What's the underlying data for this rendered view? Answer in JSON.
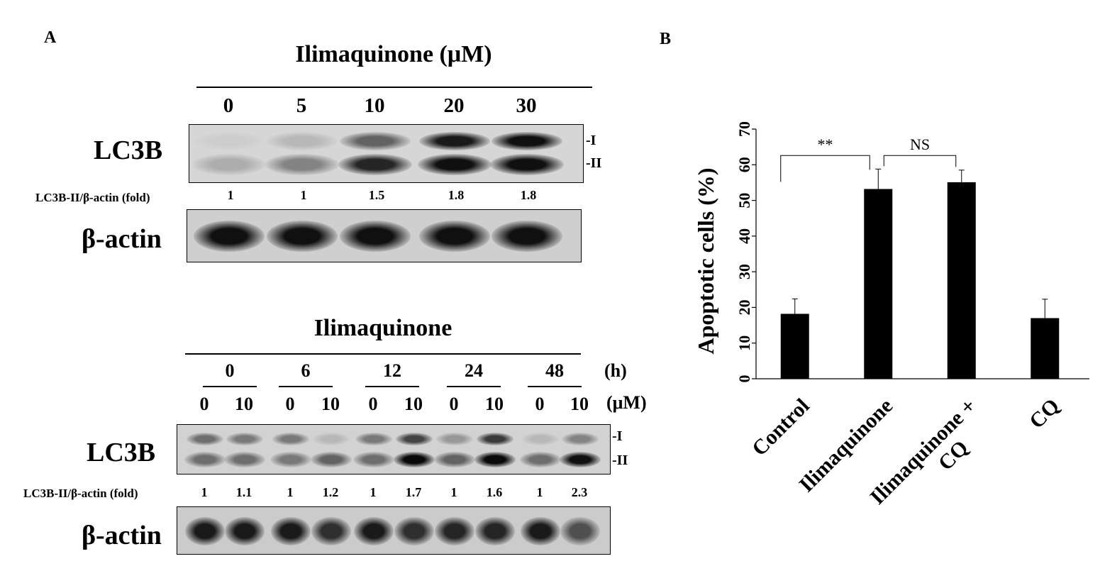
{
  "panel_a": {
    "letter": "A",
    "blot1": {
      "title": "Ilimaquinone (μM)",
      "doses": [
        "0",
        "5",
        "10",
        "20",
        "30"
      ],
      "lc3b_label": "LC3B",
      "form_I": "I",
      "form_II": "II",
      "ratio_label": "LC3B-II/β-actin (fold)",
      "ratios": [
        "1",
        "1",
        "1.5",
        "1.8",
        "1.8"
      ],
      "actin_label": "β-actin",
      "band_I_intensity": [
        0.05,
        0.15,
        0.55,
        0.9,
        0.95
      ],
      "band_II_intensity": [
        0.2,
        0.4,
        0.85,
        0.95,
        0.95
      ],
      "actin_intensity": [
        0.95,
        0.95,
        0.95,
        0.95,
        0.95
      ]
    },
    "blot2": {
      "title": "Ilimaquinone",
      "times": [
        "0",
        "6",
        "12",
        "24",
        "48"
      ],
      "time_unit": "(h)",
      "concentrations": [
        "0",
        "10",
        "0",
        "10",
        "0",
        "10",
        "0",
        "10",
        "0",
        "10"
      ],
      "conc_unit": "(μM)",
      "lc3b_label": "LC3B",
      "form_I": "I",
      "form_II": "II",
      "ratio_label": "LC3B-II/β-actin (fold)",
      "ratios": [
        "1",
        "1.1",
        "1",
        "1.2",
        "1",
        "1.7",
        "1",
        "1.6",
        "1",
        "2.3"
      ],
      "actin_label": "β-actin",
      "band_I_intensity": [
        0.5,
        0.45,
        0.45,
        0.15,
        0.45,
        0.7,
        0.3,
        0.75,
        0.15,
        0.4
      ],
      "band_II_intensity": [
        0.5,
        0.5,
        0.45,
        0.55,
        0.5,
        0.98,
        0.55,
        0.98,
        0.5,
        0.95
      ],
      "actin_intensity": [
        0.9,
        0.9,
        0.9,
        0.8,
        0.9,
        0.8,
        0.85,
        0.85,
        0.9,
        0.65
      ]
    }
  },
  "panel_b": {
    "letter": "B"
  },
  "chart_data": {
    "type": "bar",
    "categories": [
      "Control",
      "Ilimaquinone",
      "Ilimaquinone +\nCQ",
      "CQ"
    ],
    "values": [
      18.2,
      53.2,
      55.1,
      17
    ],
    "errors": [
      4.2,
      5.6,
      3.4,
      5.3
    ],
    "ylabel": "Apoptotic cells (%)",
    "ylim": [
      0,
      70
    ],
    "yticks": [
      "0",
      "10",
      "20",
      "30",
      "40",
      "50",
      "60",
      "70"
    ],
    "bar_color": "#000000",
    "annotations": [
      {
        "text": "**",
        "from": "Control",
        "to": "Ilimaquinone"
      },
      {
        "text": "NS",
        "from": "Ilimaquinone",
        "to": "Ilimaquinone +\nCQ"
      }
    ],
    "grid": false
  }
}
